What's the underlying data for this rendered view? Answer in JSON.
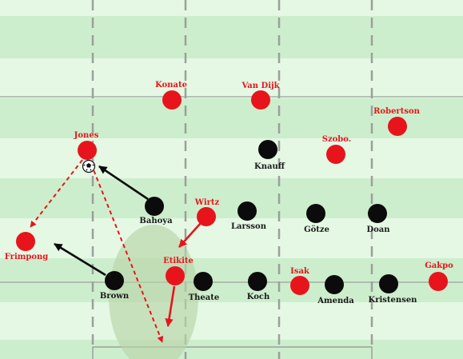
{
  "diagram": {
    "colors": {
      "stripe_dark": "#cdeecd",
      "stripe_light": "#e4f8e4",
      "line": "#9aa09a",
      "red_team": "#e8141c",
      "black_team": "#0b0b0b",
      "red_label": "#e8141c",
      "black_label": "#1a1a1a",
      "space_zone": "#b8d4a8"
    },
    "red_players": [
      {
        "id": "konate",
        "name": "Konate"
      },
      {
        "id": "van-dijk",
        "name": "Van Dijk"
      },
      {
        "id": "robertson",
        "name": "Robertson"
      },
      {
        "id": "jones",
        "name": "Jones"
      },
      {
        "id": "szobo",
        "name": "Szobo."
      },
      {
        "id": "wirtz",
        "name": "Wirtz"
      },
      {
        "id": "frimpong",
        "name": "Frimpong"
      },
      {
        "id": "etikite",
        "name": "Etikite"
      },
      {
        "id": "isak",
        "name": "Isak"
      },
      {
        "id": "gakpo",
        "name": "Gakpo"
      }
    ],
    "black_players": [
      {
        "id": "knauff",
        "name": "Knauff"
      },
      {
        "id": "bahoya",
        "name": "Bahoya"
      },
      {
        "id": "larsson",
        "name": "Larsson"
      },
      {
        "id": "gotze",
        "name": "Götze"
      },
      {
        "id": "doan",
        "name": "Doan"
      },
      {
        "id": "brown",
        "name": "Brown"
      },
      {
        "id": "theate",
        "name": "Theate"
      },
      {
        "id": "koch",
        "name": "Koch"
      },
      {
        "id": "amenda",
        "name": "Amenda"
      },
      {
        "id": "kristensen",
        "name": "Kristensen"
      }
    ]
  }
}
